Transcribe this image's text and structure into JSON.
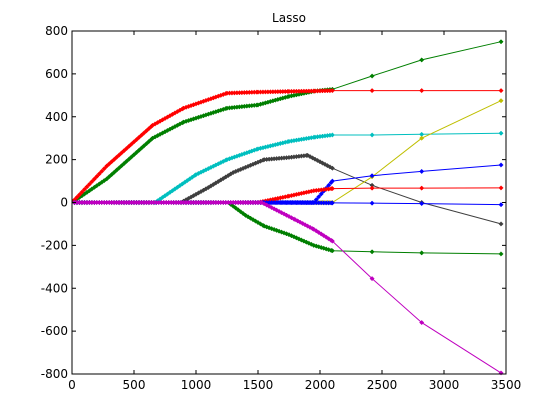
{
  "chart_data": {
    "type": "line",
    "title": "Lasso",
    "xlabel": "",
    "ylabel": "",
    "xlim": [
      0,
      3500
    ],
    "ylim": [
      -800,
      800
    ],
    "xticks": [
      0,
      500,
      1000,
      1500,
      2000,
      2500,
      3000,
      3500
    ],
    "yticks": [
      -800,
      -600,
      -400,
      -200,
      0,
      200,
      400,
      600,
      800
    ],
    "grid": false,
    "legend": "none",
    "marker": "diamond",
    "series": [
      {
        "color": "#007f00",
        "x": [
          0,
          280,
          650,
          900,
          1250,
          1500,
          1750,
          1960,
          2100,
          2420,
          2820,
          3460
        ],
        "y": [
          0,
          110,
          300,
          375,
          440,
          455,
          495,
          520,
          528,
          590,
          665,
          750
        ]
      },
      {
        "color": "#ff0000",
        "x": [
          0,
          280,
          650,
          900,
          1250,
          1500,
          1750,
          1960,
          2100,
          2420,
          2820,
          3460
        ],
        "y": [
          0,
          170,
          360,
          440,
          510,
          515,
          518,
          520,
          522,
          522,
          522,
          522
        ]
      },
      {
        "color": "#00bfbf",
        "x": [
          0,
          670,
          1000,
          1250,
          1500,
          1750,
          1960,
          2100,
          2420,
          2820,
          3460
        ],
        "y": [
          0,
          0,
          130,
          200,
          250,
          285,
          305,
          315,
          315,
          318,
          323
        ]
      },
      {
        "color": "#3f3f3f",
        "x": [
          0,
          880,
          1100,
          1300,
          1550,
          1750,
          1900,
          2100,
          2420,
          2820,
          3460
        ],
        "y": [
          0,
          0,
          70,
          140,
          200,
          210,
          220,
          160,
          80,
          0,
          -100
        ]
      },
      {
        "color": "#bfbf00",
        "x": [
          0,
          1960,
          2100,
          2420,
          2820,
          3460
        ],
        "y": [
          0,
          0,
          0,
          120,
          300,
          475
        ]
      },
      {
        "color": "#0000ff",
        "x": [
          0,
          1950,
          2100,
          2420,
          2820,
          3460
        ],
        "y": [
          0,
          0,
          100,
          125,
          145,
          175
        ]
      },
      {
        "color": "#ff0000",
        "x": [
          0,
          1500,
          1750,
          1950,
          2100,
          2420,
          2820,
          3460
        ],
        "y": [
          0,
          0,
          30,
          55,
          65,
          67,
          67,
          68
        ]
      },
      {
        "color": "#007f00",
        "x": [
          0,
          1260,
          1400,
          1550,
          1750,
          1950,
          2100,
          2420,
          2820,
          3460
        ],
        "y": [
          0,
          0,
          -60,
          -110,
          -150,
          -200,
          -225,
          -230,
          -235,
          -240
        ]
      },
      {
        "color": "#0000ff",
        "x": [
          0,
          1550,
          2100,
          2420,
          2820,
          3460
        ],
        "y": [
          0,
          0,
          -2,
          -3,
          -5,
          -10
        ]
      },
      {
        "color": "#bf00bf",
        "x": [
          0,
          1530,
          1800,
          1950,
          2100,
          2420,
          2820,
          3460
        ],
        "y": [
          0,
          0,
          -80,
          -125,
          -180,
          -355,
          -560,
          -795
        ]
      }
    ]
  }
}
